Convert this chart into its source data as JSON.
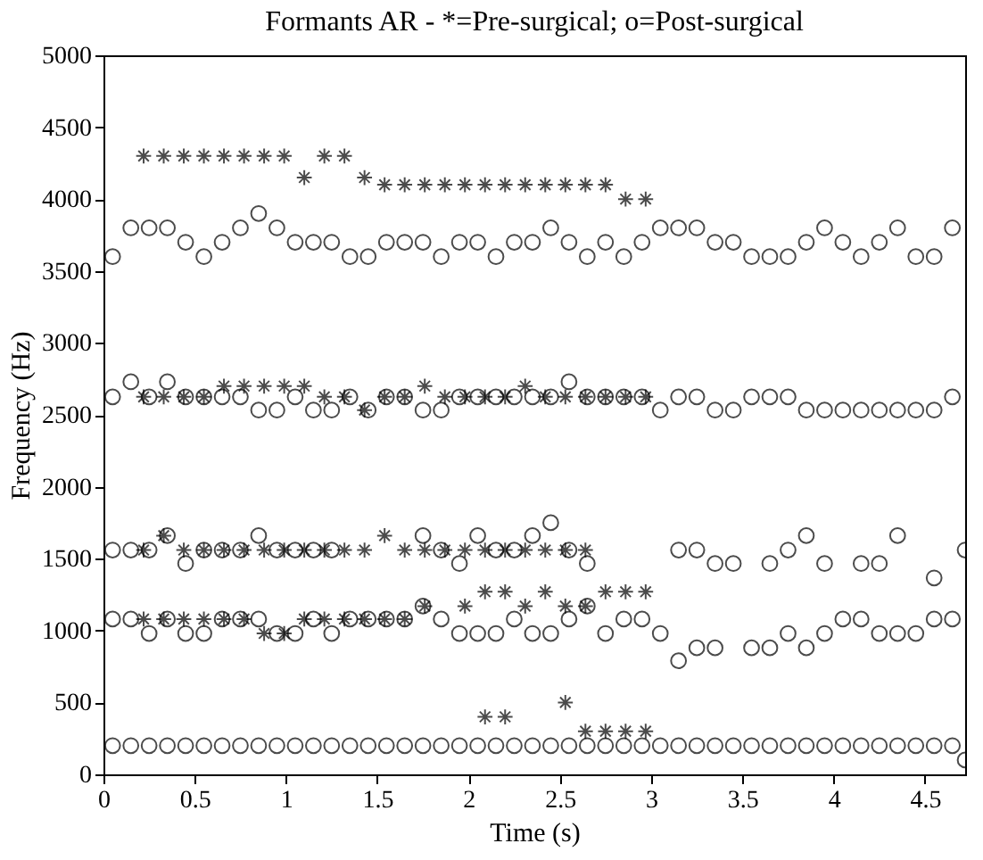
{
  "chart_data": {
    "type": "scatter",
    "title": "Formants AR - *=Pre-surgical; o=Post-surgical",
    "xlabel": "Time (s)",
    "ylabel": "Frequency (Hz)",
    "xlim": [
      0,
      4.72
    ],
    "ylim": [
      0,
      5000
    ],
    "xticks": [
      0,
      0.5,
      1,
      1.5,
      2,
      2.5,
      3,
      3.5,
      4,
      4.5
    ],
    "yticks": [
      0,
      500,
      1000,
      1500,
      2000,
      2500,
      3000,
      3500,
      4000,
      4500,
      5000
    ],
    "series": [
      {
        "color": "#000000",
        "marker": "circle",
        "x": [
          0.05,
          0.15,
          0.25,
          0.35,
          0.45,
          0.55,
          0.65,
          0.75,
          0.85,
          0.95,
          1.05,
          1.15,
          1.25,
          1.35,
          1.45,
          1.55,
          1.65,
          1.75,
          1.85,
          1.95,
          2.05,
          2.15,
          2.25,
          2.35,
          2.45,
          2.55,
          2.65,
          2.75,
          2.85,
          2.95,
          3.05,
          3.15,
          3.25,
          3.35,
          3.45,
          3.55,
          3.65,
          3.75,
          3.85,
          3.95,
          4.05,
          4.15,
          4.25,
          4.35,
          4.45,
          4.55,
          4.65,
          4.72
        ],
        "values": [
          200,
          200,
          200,
          200,
          200,
          200,
          200,
          200,
          200,
          200,
          200,
          200,
          200,
          200,
          200,
          200,
          200,
          200,
          200,
          200,
          200,
          200,
          200,
          200,
          200,
          200,
          200,
          200,
          200,
          200,
          200,
          200,
          200,
          200,
          200,
          200,
          200,
          200,
          200,
          200,
          200,
          200,
          200,
          200,
          200,
          200,
          200,
          100
        ]
      },
      {
        "color": "#000000",
        "marker": "circle",
        "x": [
          0.05,
          0.15,
          0.25,
          0.35,
          0.45,
          0.55,
          0.65,
          0.75,
          0.85,
          0.95,
          1.05,
          1.15,
          1.25,
          1.35,
          1.45,
          1.55,
          1.65,
          1.75,
          1.85,
          1.95,
          2.05,
          2.15,
          2.25,
          2.35,
          2.45,
          2.55,
          2.65,
          2.75,
          2.85,
          2.95,
          3.05,
          3.15,
          3.25,
          3.35,
          3.55,
          3.65,
          3.75,
          3.85,
          3.95,
          4.05,
          4.15,
          4.25,
          4.35,
          4.45,
          4.55,
          4.65
        ],
        "values": [
          1080,
          1080,
          980,
          1080,
          980,
          980,
          1080,
          1080,
          1080,
          980,
          980,
          1080,
          980,
          1080,
          1080,
          1080,
          1080,
          1170,
          1080,
          980,
          980,
          980,
          1080,
          980,
          980,
          1080,
          1170,
          980,
          1080,
          1080,
          980,
          790,
          880,
          880,
          880,
          880,
          980,
          880,
          980,
          1080,
          1080,
          980,
          980,
          980,
          1080,
          1080
        ]
      },
      {
        "color": "#000000",
        "marker": "circle",
        "x": [
          0.05,
          0.15,
          0.25,
          0.35,
          0.45,
          0.55,
          0.65,
          0.75,
          0.85,
          0.95,
          1.05,
          1.15,
          1.25,
          1.75,
          1.85,
          1.95,
          2.05,
          2.15,
          2.25,
          2.35,
          2.45,
          2.55,
          2.65,
          3.15,
          3.25,
          3.35,
          3.45,
          3.65,
          3.75,
          3.85,
          3.95,
          4.15,
          4.25,
          4.35,
          4.55,
          4.72
        ],
        "values": [
          1560,
          1560,
          1560,
          1660,
          1466,
          1560,
          1560,
          1560,
          1660,
          1560,
          1560,
          1560,
          1560,
          1660,
          1560,
          1466,
          1660,
          1560,
          1560,
          1660,
          1750,
          1560,
          1466,
          1560,
          1560,
          1466,
          1466,
          1466,
          1560,
          1660,
          1466,
          1466,
          1466,
          1660,
          1366,
          1560
        ]
      },
      {
        "color": "#000000",
        "marker": "circle",
        "x": [
          0.05,
          0.15,
          0.25,
          0.35,
          0.45,
          0.55,
          0.65,
          0.75,
          0.85,
          0.95,
          1.05,
          1.15,
          1.25,
          1.35,
          1.45,
          1.55,
          1.65,
          1.75,
          1.85,
          1.95,
          2.05,
          2.15,
          2.25,
          2.35,
          2.45,
          2.55,
          2.65,
          2.75,
          2.85,
          2.95,
          3.05,
          3.15,
          3.25,
          3.35,
          3.45,
          3.55,
          3.65,
          3.75,
          3.85,
          3.95,
          4.05,
          4.15,
          4.25,
          4.35,
          4.45,
          4.55,
          4.65
        ],
        "values": [
          2625,
          2730,
          2625,
          2730,
          2625,
          2625,
          2625,
          2625,
          2533,
          2533,
          2625,
          2533,
          2533,
          2625,
          2533,
          2625,
          2625,
          2533,
          2533,
          2625,
          2625,
          2625,
          2625,
          2625,
          2625,
          2730,
          2625,
          2625,
          2625,
          2625,
          2533,
          2625,
          2625,
          2533,
          2533,
          2625,
          2625,
          2625,
          2533,
          2533,
          2533,
          2533,
          2533,
          2533,
          2533,
          2533,
          2625
        ]
      },
      {
        "color": "#000000",
        "marker": "circle",
        "x": [
          0.05,
          0.15,
          0.25,
          0.35,
          0.45,
          0.55,
          0.65,
          0.75,
          0.85,
          0.95,
          1.05,
          1.15,
          1.25,
          1.35,
          1.45,
          1.55,
          1.65,
          1.75,
          1.85,
          1.95,
          2.05,
          2.15,
          2.25,
          2.35,
          2.45,
          2.55,
          2.65,
          2.75,
          2.85,
          2.95,
          3.05,
          3.15,
          3.25,
          3.35,
          3.45,
          3.55,
          3.65,
          3.75,
          3.85,
          3.95,
          4.05,
          4.15,
          4.25,
          4.35,
          4.45,
          4.55,
          4.65
        ],
        "values": [
          3600,
          3800,
          3800,
          3800,
          3700,
          3600,
          3700,
          3800,
          3900,
          3800,
          3700,
          3700,
          3700,
          3600,
          3600,
          3700,
          3700,
          3700,
          3600,
          3700,
          3700,
          3600,
          3700,
          3700,
          3800,
          3700,
          3600,
          3700,
          3600,
          3700,
          3800,
          3800,
          3800,
          3700,
          3700,
          3600,
          3600,
          3600,
          3700,
          3800,
          3700,
          3600,
          3700,
          3800,
          3600,
          3600,
          3800
        ]
      },
      {
        "color": "#000000",
        "marker": "cross",
        "x": [
          0.22,
          0.33,
          0.44,
          0.55,
          0.66,
          0.77,
          0.88,
          0.99,
          1.1,
          1.21,
          1.32,
          1.43,
          1.54,
          1.65,
          1.76,
          1.87,
          1.98,
          2.09,
          2.2,
          2.31,
          2.42,
          2.53,
          2.64,
          2.75,
          2.86,
          2.97
        ],
        "values": [
          4300,
          4300,
          4300,
          4300,
          4300,
          4300,
          4300,
          4300,
          4150,
          4300,
          4300,
          4150,
          4100,
          4100,
          4100,
          4100,
          4100,
          4100,
          4100,
          4100,
          4100,
          4100,
          4100,
          4100,
          4000,
          4000
        ]
      },
      {
        "color": "#000000",
        "marker": "cross",
        "x": [
          0.22,
          0.33,
          0.44,
          0.55,
          0.66,
          0.77,
          0.88,
          0.99,
          1.1,
          1.21,
          1.32,
          1.43,
          1.54,
          1.65,
          1.76,
          1.87,
          1.98,
          2.09,
          2.2,
          2.31,
          2.42,
          2.53,
          2.64,
          2.75,
          2.86,
          2.97
        ],
        "values": [
          2625,
          2625,
          2625,
          2625,
          2700,
          2700,
          2700,
          2700,
          2700,
          2625,
          2625,
          2533,
          2625,
          2625,
          2700,
          2625,
          2625,
          2625,
          2625,
          2700,
          2625,
          2625,
          2625,
          2625,
          2625,
          2625
        ]
      },
      {
        "color": "#000000",
        "marker": "cross",
        "x": [
          0.22,
          0.33,
          0.44,
          0.55,
          0.66,
          0.77,
          0.88,
          0.99,
          1.1,
          1.21,
          1.32,
          1.43,
          1.54,
          1.65,
          1.76,
          1.87,
          1.98,
          2.09,
          2.2,
          2.31,
          2.42,
          2.53,
          2.64
        ],
        "values": [
          1560,
          1660,
          1560,
          1560,
          1560,
          1560,
          1560,
          1560,
          1560,
          1560,
          1560,
          1560,
          1660,
          1560,
          1560,
          1560,
          1560,
          1560,
          1560,
          1560,
          1560,
          1560,
          1560
        ]
      },
      {
        "color": "#000000",
        "marker": "cross",
        "x": [
          0.22,
          0.33,
          0.44,
          0.55,
          0.66,
          0.77,
          0.88,
          0.99,
          1.1,
          1.21,
          1.32,
          1.43,
          1.54,
          1.65,
          1.76,
          1.98,
          2.09,
          2.2,
          2.31,
          2.42,
          2.53,
          2.64,
          2.75,
          2.86,
          2.97
        ],
        "values": [
          1080,
          1080,
          1080,
          1080,
          1080,
          1080,
          980,
          980,
          1080,
          1080,
          1080,
          1080,
          1080,
          1080,
          1170,
          1170,
          1270,
          1270,
          1170,
          1270,
          1170,
          1170,
          1270,
          1270,
          1270
        ]
      },
      {
        "color": "#000000",
        "marker": "cross",
        "x": [
          2.09,
          2.2,
          2.53,
          2.64,
          2.75,
          2.86,
          2.97
        ],
        "values": [
          400,
          400,
          500,
          300,
          300,
          300,
          300
        ]
      }
    ]
  }
}
